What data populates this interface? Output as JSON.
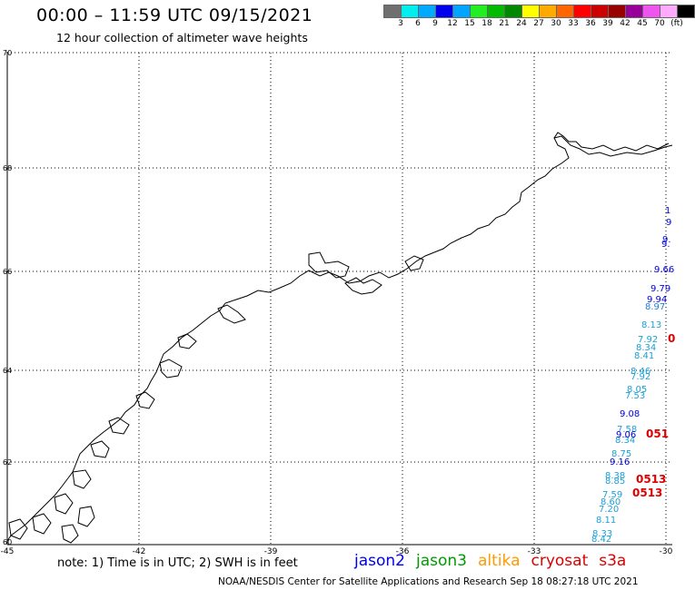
{
  "header": {
    "title": "00:00 – 11:59 UTC 09/15/2021",
    "subtitle": "12 hour collection of altimeter wave heights"
  },
  "colorbar": {
    "colors": [
      "#6f6f6f",
      "#00eeee",
      "#00aaff",
      "#0000ee",
      "#00a5ff",
      "#22ee22",
      "#00bb00",
      "#008800",
      "#ffff00",
      "#ffaa00",
      "#ff6600",
      "#ff0000",
      "#cc0000",
      "#990000",
      "#990099",
      "#ee55ee",
      "#ffaaff",
      "#000000"
    ],
    "labels": [
      "3",
      "6",
      "9",
      "12",
      "15",
      "18",
      "21",
      "24",
      "27",
      "30",
      "33",
      "36",
      "39",
      "42",
      "45",
      "70",
      "(ft)"
    ]
  },
  "axes": {
    "lat_labels": [
      "70",
      "68",
      "66",
      "64",
      "62",
      "60"
    ],
    "lon_labels": [
      "-45",
      "-42",
      "-39",
      "-36",
      "-33",
      "-30"
    ]
  },
  "observations": {
    "cyan_values": [
      "8.13",
      "7.92",
      "8.34",
      "8.41",
      "8.46",
      "7.92",
      "8.05",
      "7.53",
      "7.58",
      "8.34",
      "8.75",
      "8.38",
      "8.85",
      "7.59",
      "8.60",
      "7.20",
      "8.11",
      "8.33",
      "8.42"
    ],
    "blue_values": [
      "1",
      "9",
      "9.",
      "9.",
      "9.66",
      "9.79",
      "9.94",
      "9.08",
      "9.06",
      "9.16"
    ],
    "mixed_values": [
      "8.97"
    ],
    "red_values": [
      "0",
      "051",
      "0513",
      "0513"
    ]
  },
  "footer": {
    "note": "note:  1) Time is in UTC;  2) SWH is in feet",
    "satellites": [
      {
        "name": "jason2",
        "color": "#0000ee"
      },
      {
        "name": "jason3",
        "color": "#009900"
      },
      {
        "name": "altika",
        "color": "#ff9900"
      },
      {
        "name": "cryosat",
        "color": "#dd0000"
      },
      {
        "name": "s3a",
        "color": "#dd0000"
      }
    ],
    "credit": "NOAA/NESDIS Center for Satellite Applications and Research      Sep 18 08:27:18 UTC 2021"
  }
}
